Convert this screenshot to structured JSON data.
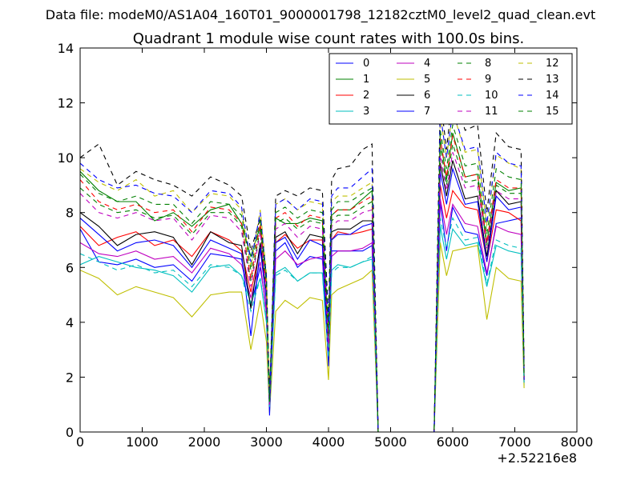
{
  "chart_data": {
    "type": "line",
    "suptitle": "Data file: modeM0/AS1A04_160T01_9000001798_12182cztM0_level2_quad_clean.evt",
    "title": "Quadrant 1 module wise count rates with 100.0s bins.",
    "xlabel": "",
    "ylabel": "",
    "offset_text": "+2.52216e8",
    "xlim": [
      0,
      8000
    ],
    "ylim": [
      0,
      14
    ],
    "xticks": [
      "0",
      "1000",
      "2000",
      "3000",
      "4000",
      "5000",
      "6000",
      "7000",
      "8000"
    ],
    "yticks": [
      "0",
      "2",
      "4",
      "6",
      "8",
      "10",
      "12",
      "14"
    ],
    "grid": false,
    "legend_position": "top-right",
    "legend_columns": 4,
    "x": [
      0,
      300,
      600,
      900,
      1200,
      1500,
      1800,
      2100,
      2400,
      2600,
      2750,
      2900,
      3000,
      3050,
      3150,
      3300,
      3500,
      3700,
      3900,
      4000,
      4050,
      4150,
      4350,
      4550,
      4700,
      4800,
      4900,
      5700,
      5800,
      5900,
      6000,
      6200,
      6400,
      6550,
      6700,
      6900,
      7100,
      7150
    ],
    "series": [
      {
        "name": "0",
        "color": "#0000ff",
        "dash": "solid",
        "values": [
          7.4,
          6.2,
          6.1,
          6.3,
          6.0,
          6.1,
          5.5,
          6.5,
          6.4,
          6.3,
          4.6,
          6.0,
          4.5,
          1.5,
          6.6,
          6.9,
          6.0,
          6.4,
          6.3,
          3.2,
          6.6,
          6.6,
          6.6,
          6.6,
          6.8,
          0.0,
          0.0,
          0.0,
          8.4,
          6.6,
          8.2,
          7.3,
          7.2,
          5.7,
          7.6,
          7.7,
          7.8,
          1.9
        ]
      },
      {
        "name": "1",
        "color": "#008000",
        "dash": "solid",
        "values": [
          9.5,
          8.8,
          8.4,
          8.4,
          7.7,
          8.0,
          7.5,
          8.1,
          8.3,
          7.6,
          6.4,
          7.5,
          5.5,
          1.1,
          7.8,
          7.6,
          7.6,
          7.8,
          7.7,
          3.5,
          7.9,
          8.1,
          8.1,
          8.5,
          8.8,
          0.0,
          0.0,
          0.0,
          10.7,
          9.2,
          10.9,
          9.3,
          9.4,
          6.9,
          9.1,
          8.8,
          8.9,
          2.0
        ]
      },
      {
        "name": "2",
        "color": "#ff0000",
        "dash": "solid",
        "values": [
          7.5,
          6.8,
          7.1,
          7.3,
          6.8,
          7.0,
          6.4,
          7.3,
          7.0,
          6.6,
          5.1,
          6.7,
          4.8,
          1.0,
          6.9,
          7.2,
          6.7,
          7.0,
          7.0,
          3.1,
          7.0,
          7.3,
          7.2,
          7.3,
          7.4,
          0.0,
          0.0,
          0.0,
          9.0,
          7.8,
          8.8,
          8.2,
          8.1,
          6.2,
          8.1,
          8.0,
          7.7,
          1.9
        ]
      },
      {
        "name": "3",
        "color": "#00bfbf",
        "dash": "solid",
        "values": [
          6.1,
          6.4,
          6.2,
          6.0,
          5.9,
          5.7,
          5.1,
          6.0,
          6.1,
          5.7,
          4.7,
          5.6,
          4.0,
          0.9,
          5.8,
          6.0,
          5.5,
          5.8,
          5.8,
          2.7,
          5.9,
          6.1,
          6.0,
          6.2,
          6.3,
          0.0,
          0.0,
          0.0,
          7.5,
          6.3,
          7.4,
          6.8,
          6.9,
          5.3,
          6.8,
          6.6,
          6.5,
          1.7
        ]
      },
      {
        "name": "4",
        "color": "#bf00bf",
        "dash": "solid",
        "values": [
          6.9,
          6.5,
          6.4,
          6.6,
          6.3,
          6.4,
          5.8,
          6.7,
          6.5,
          6.1,
          4.9,
          6.2,
          4.3,
          1.0,
          6.3,
          6.6,
          6.1,
          6.3,
          6.4,
          2.9,
          6.4,
          6.6,
          6.6,
          6.7,
          6.9,
          0.0,
          0.0,
          0.0,
          8.5,
          7.2,
          8.3,
          7.6,
          7.5,
          5.8,
          7.5,
          7.3,
          7.2,
          1.8
        ]
      },
      {
        "name": "5",
        "color": "#bfbf00",
        "dash": "solid",
        "values": [
          5.9,
          5.6,
          5.0,
          5.3,
          5.1,
          4.9,
          4.2,
          5.0,
          5.1,
          5.1,
          3.0,
          4.8,
          3.3,
          0.7,
          4.4,
          4.8,
          4.5,
          4.9,
          4.8,
          1.9,
          5.0,
          5.2,
          5.4,
          5.6,
          5.9,
          0.0,
          0.0,
          0.0,
          6.9,
          5.7,
          6.6,
          6.7,
          6.8,
          4.1,
          6.0,
          5.6,
          5.5,
          1.6
        ]
      },
      {
        "name": "6",
        "color": "#000000",
        "dash": "solid",
        "values": [
          8.0,
          7.5,
          6.8,
          7.2,
          7.3,
          7.1,
          6.1,
          7.3,
          6.9,
          6.8,
          4.5,
          6.9,
          5.0,
          1.2,
          7.1,
          7.3,
          6.5,
          7.2,
          7.1,
          3.3,
          7.3,
          7.4,
          7.4,
          7.7,
          7.7,
          0.0,
          0.0,
          0.0,
          9.8,
          8.6,
          9.9,
          8.5,
          8.6,
          6.4,
          8.8,
          8.3,
          8.4,
          2.0
        ]
      },
      {
        "name": "7",
        "color": "#0000ff",
        "dash": "solid",
        "values": [
          7.8,
          7.2,
          6.6,
          6.9,
          7.0,
          6.8,
          6.0,
          7.0,
          6.7,
          6.5,
          3.5,
          6.7,
          4.8,
          0.6,
          6.9,
          7.1,
          6.3,
          7.0,
          6.8,
          2.4,
          7.0,
          7.2,
          7.2,
          7.5,
          7.6,
          0.0,
          0.0,
          0.0,
          9.5,
          8.3,
          9.6,
          8.3,
          8.4,
          6.2,
          8.6,
          8.1,
          8.2,
          1.9
        ]
      },
      {
        "name": "8",
        "color": "#008000",
        "dash": "dashed",
        "values": [
          8.9,
          8.3,
          8.0,
          8.1,
          7.8,
          7.9,
          7.2,
          8.0,
          8.0,
          7.5,
          5.5,
          7.4,
          5.1,
          1.1,
          7.6,
          7.8,
          7.4,
          7.7,
          7.6,
          3.4,
          7.7,
          7.9,
          7.9,
          8.2,
          8.4,
          0.0,
          0.0,
          0.0,
          10.4,
          9.0,
          10.5,
          9.1,
          9.2,
          6.8,
          9.0,
          8.7,
          8.7,
          2.0
        ]
      },
      {
        "name": "9",
        "color": "#ff0000",
        "dash": "dashed",
        "values": [
          9.2,
          8.4,
          8.1,
          8.3,
          8.0,
          8.1,
          7.3,
          8.2,
          8.1,
          7.6,
          5.6,
          7.6,
          5.2,
          1.1,
          7.8,
          8.0,
          7.5,
          7.9,
          7.8,
          3.4,
          7.9,
          8.1,
          8.1,
          8.4,
          8.6,
          0.0,
          0.0,
          0.0,
          10.7,
          9.3,
          10.8,
          9.3,
          9.4,
          6.9,
          9.2,
          8.9,
          8.9,
          2.1
        ]
      },
      {
        "name": "10",
        "color": "#00bfbf",
        "dash": "dashed",
        "values": [
          6.5,
          6.2,
          5.9,
          6.1,
          5.8,
          5.9,
          5.3,
          6.1,
          6.0,
          5.7,
          4.4,
          5.6,
          4.1,
          0.9,
          5.7,
          5.9,
          5.5,
          5.8,
          5.8,
          2.7,
          5.8,
          6.0,
          6.0,
          6.2,
          6.4,
          0.0,
          0.0,
          0.0,
          7.8,
          6.7,
          7.8,
          7.0,
          7.1,
          5.4,
          7.0,
          6.8,
          6.7,
          1.8
        ]
      },
      {
        "name": "11",
        "color": "#bf00bf",
        "dash": "dashed",
        "values": [
          8.7,
          8.0,
          7.8,
          8.0,
          7.7,
          7.8,
          7.0,
          7.9,
          7.8,
          7.3,
          5.3,
          7.3,
          5.0,
          1.0,
          7.4,
          7.6,
          7.1,
          7.5,
          7.4,
          3.2,
          7.5,
          7.7,
          7.7,
          8.0,
          8.1,
          0.0,
          0.0,
          0.0,
          10.1,
          8.8,
          10.2,
          8.9,
          9.0,
          6.7,
          8.8,
          8.5,
          8.5,
          2.0
        ]
      },
      {
        "name": "12",
        "color": "#bfbf00",
        "dash": "dashed",
        "values": [
          9.6,
          9.1,
          8.8,
          9.2,
          8.6,
          8.8,
          8.0,
          8.7,
          8.6,
          8.1,
          6.0,
          8.1,
          5.8,
          1.3,
          8.3,
          8.5,
          8.1,
          8.4,
          8.3,
          3.7,
          8.4,
          8.6,
          8.6,
          8.9,
          9.1,
          0.0,
          0.0,
          0.0,
          11.5,
          10.0,
          11.7,
          10.2,
          10.3,
          7.5,
          10.1,
          9.8,
          9.6,
          2.2
        ]
      },
      {
        "name": "13",
        "color": "#000000",
        "dash": "dashed",
        "values": [
          10.0,
          10.5,
          9.0,
          9.5,
          9.2,
          9.0,
          8.6,
          9.3,
          9.0,
          8.6,
          6.6,
          7.8,
          5.7,
          1.3,
          8.6,
          8.8,
          8.6,
          8.9,
          8.8,
          4.2,
          9.2,
          9.6,
          9.7,
          10.3,
          10.5,
          0.0,
          0.0,
          0.0,
          12.2,
          10.3,
          12.4,
          11.0,
          11.2,
          8.0,
          10.9,
          10.4,
          10.3,
          2.4
        ]
      },
      {
        "name": "14",
        "color": "#0000ff",
        "dash": "dashed",
        "values": [
          9.8,
          9.2,
          8.9,
          9.0,
          8.7,
          8.6,
          8.0,
          8.8,
          8.7,
          8.2,
          6.2,
          8.0,
          5.6,
          1.2,
          8.3,
          8.5,
          8.1,
          8.5,
          8.4,
          3.8,
          8.6,
          8.9,
          8.9,
          9.3,
          9.6,
          0.0,
          0.0,
          0.0,
          11.6,
          10.0,
          11.7,
          10.3,
          10.4,
          7.6,
          10.2,
          9.8,
          9.7,
          2.2
        ]
      },
      {
        "name": "15",
        "color": "#008000",
        "dash": "dashed",
        "values": [
          9.4,
          8.7,
          8.4,
          8.6,
          8.3,
          8.3,
          7.6,
          8.4,
          8.3,
          7.9,
          5.9,
          7.8,
          5.4,
          1.1,
          8.0,
          8.2,
          7.8,
          8.1,
          8.0,
          3.6,
          8.1,
          8.4,
          8.4,
          8.7,
          8.9,
          0.0,
          0.0,
          0.0,
          11.0,
          9.6,
          11.2,
          9.7,
          9.8,
          7.2,
          9.6,
          9.3,
          9.2,
          2.1
        ]
      }
    ]
  }
}
